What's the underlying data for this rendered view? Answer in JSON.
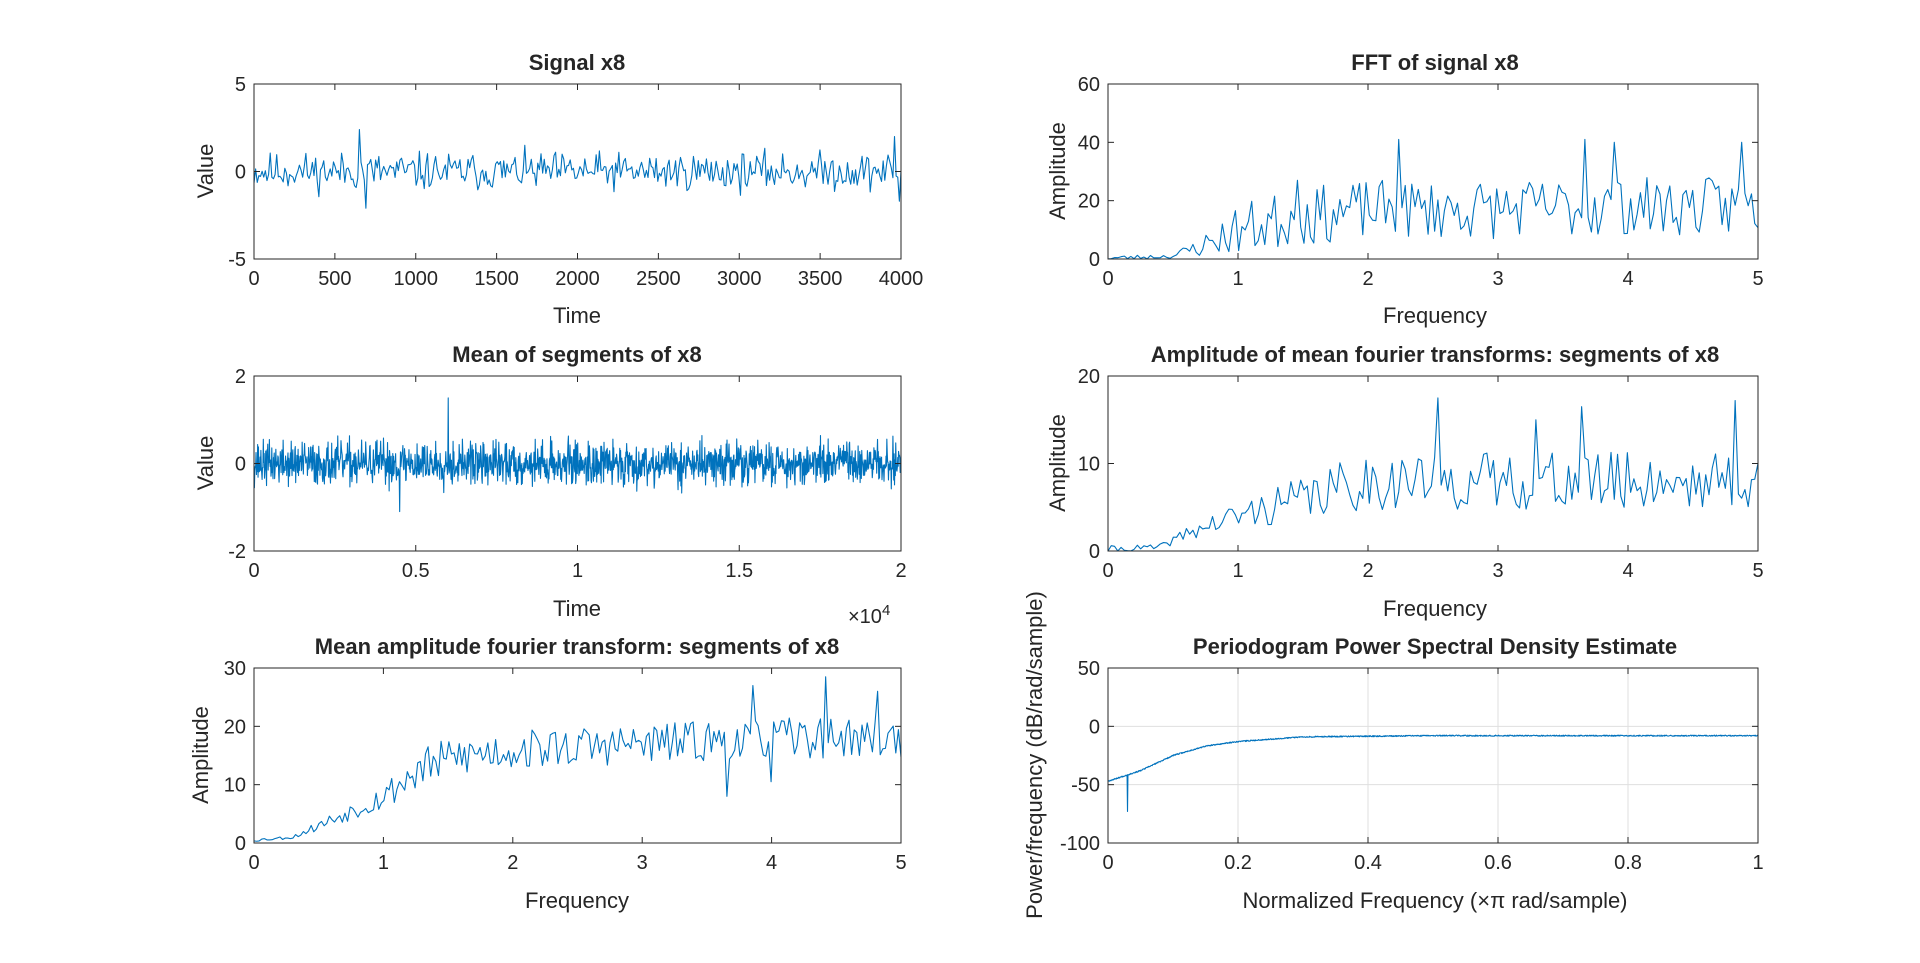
{
  "figure": {
    "background": "#ffffff",
    "line_color": "#0072bd",
    "axis_color": "#262626",
    "grid_color": "#dfdfdf"
  },
  "chart_data": [
    {
      "id": "signal",
      "type": "line",
      "title": "Signal x8",
      "xlabel": "Time",
      "ylabel": "Value",
      "xlim": [
        0,
        4000
      ],
      "ylim": [
        -5,
        5
      ],
      "xticks": [
        0,
        500,
        1000,
        1500,
        2000,
        2500,
        3000,
        3500,
        4000
      ],
      "xtick_labels": [
        "0",
        "500",
        "1000",
        "1500",
        "2000",
        "2500",
        "3000",
        "3500",
        "4000"
      ],
      "yticks": [
        -5,
        0,
        5
      ],
      "ytick_labels": [
        "-5",
        "0",
        "5"
      ],
      "grid": false,
      "series": [
        {
          "name": "",
          "n_points": 400,
          "x_range": [
            0,
            4000
          ],
          "amplitude_profile": [
            [
              0,
              0.75
            ],
            [
              4000,
              0.75
            ]
          ],
          "peak_points": [
            [
              650,
              2.4
            ],
            [
              690,
              -2.1
            ],
            [
              3960,
              2.0
            ],
            [
              3990,
              -1.7
            ]
          ]
        }
      ]
    },
    {
      "id": "fft",
      "type": "line",
      "title": "FFT of signal x8",
      "xlabel": "Frequency",
      "ylabel": "Amplitude",
      "xlim": [
        0,
        5
      ],
      "ylim": [
        0,
        60
      ],
      "xticks": [
        0,
        1,
        2,
        3,
        4,
        5
      ],
      "xtick_labels": [
        "0",
        "1",
        "2",
        "3",
        "4",
        "5"
      ],
      "yticks": [
        0,
        20,
        40,
        60
      ],
      "ytick_labels": [
        "0",
        "20",
        "40",
        "60"
      ],
      "grid": false,
      "series": [
        {
          "name": "",
          "n_points": 200,
          "x_range": [
            0,
            5
          ],
          "baseline_profile": [
            [
              0,
              0.3
            ],
            [
              0.5,
              1
            ],
            [
              0.75,
              5
            ],
            [
              1,
              10
            ],
            [
              1.4,
              14
            ],
            [
              2,
              17
            ],
            [
              3,
              17
            ],
            [
              4,
              18
            ],
            [
              5,
              18
            ]
          ],
          "noise": 10,
          "peak_points": [
            [
              2.23,
              41
            ],
            [
              3.9,
              40
            ],
            [
              3.67,
              41
            ],
            [
              4.87,
              40
            ],
            [
              1.45,
              27
            ]
          ]
        }
      ]
    },
    {
      "id": "mean-segments",
      "type": "line",
      "title": "Mean of segments of x8",
      "xlabel": "Time",
      "ylabel": "Value",
      "x_exponent_label": "×10",
      "x_exponent": "4",
      "xlim": [
        0,
        2
      ],
      "ylim": [
        -2,
        2
      ],
      "xticks": [
        0,
        0.5,
        1,
        1.5,
        2
      ],
      "xtick_labels": [
        "0",
        "0.5",
        "1",
        "1.5",
        "2"
      ],
      "yticks": [
        -2,
        0,
        2
      ],
      "ytick_labels": [
        "-2",
        "0",
        "2"
      ],
      "grid": false,
      "series": [
        {
          "name": "",
          "n_points": 1600,
          "x_range": [
            0,
            2
          ],
          "amplitude_profile": [
            [
              0,
              0.35
            ],
            [
              2,
              0.35
            ]
          ],
          "peak_points": [
            [
              0.6,
              1.5
            ],
            [
              0.45,
              -1.1
            ]
          ]
        }
      ]
    },
    {
      "id": "mean-fft",
      "type": "line",
      "title": "Amplitude of mean fourier transforms: segments of x8",
      "xlabel": "Frequency",
      "ylabel": "Amplitude",
      "xlim": [
        0,
        5
      ],
      "ylim": [
        0,
        20
      ],
      "xticks": [
        0,
        1,
        2,
        3,
        4,
        5
      ],
      "xtick_labels": [
        "0",
        "1",
        "2",
        "3",
        "4",
        "5"
      ],
      "yticks": [
        0,
        10,
        20
      ],
      "ytick_labels": [
        "0",
        "10",
        "20"
      ],
      "grid": false,
      "series": [
        {
          "name": "",
          "n_points": 200,
          "x_range": [
            0,
            5
          ],
          "baseline_profile": [
            [
              0,
              0.2
            ],
            [
              0.4,
              0.4
            ],
            [
              0.6,
              2
            ],
            [
              1,
              4
            ],
            [
              1.5,
              6
            ],
            [
              2,
              8
            ],
            [
              3,
              8
            ],
            [
              4,
              8
            ],
            [
              5,
              8
            ]
          ],
          "noise": 5,
          "peak_points": [
            [
              2.55,
              17.5
            ],
            [
              4.82,
              17.2
            ],
            [
              3.65,
              16.5
            ],
            [
              3.3,
              15
            ]
          ]
        }
      ]
    },
    {
      "id": "mean-amplitude-fft",
      "type": "line",
      "title": "Mean amplitude fourier transform: segments of x8",
      "xlabel": "Frequency",
      "ylabel": "Amplitude",
      "xlim": [
        0,
        5
      ],
      "ylim": [
        0,
        30
      ],
      "xticks": [
        0,
        1,
        2,
        3,
        4,
        5
      ],
      "xtick_labels": [
        "0",
        "1",
        "2",
        "3",
        "4",
        "5"
      ],
      "yticks": [
        0,
        10,
        20,
        30
      ],
      "ytick_labels": [
        "0",
        "10",
        "20",
        "30"
      ],
      "grid": false,
      "series": [
        {
          "name": "",
          "n_points": 250,
          "x_range": [
            0,
            5
          ],
          "baseline_profile": [
            [
              0,
              0.5
            ],
            [
              0.3,
              1
            ],
            [
              0.6,
              4
            ],
            [
              1,
              8
            ],
            [
              1.3,
              13
            ],
            [
              1.6,
              15
            ],
            [
              2,
              16
            ],
            [
              3,
              17
            ],
            [
              4,
              18
            ],
            [
              5,
              18
            ]
          ],
          "noise": 3.5,
          "peak_points": [
            [
              4.42,
              28.5
            ],
            [
              3.85,
              27
            ],
            [
              4.82,
              26
            ],
            [
              4.0,
              10.5
            ],
            [
              3.65,
              8
            ]
          ]
        }
      ]
    },
    {
      "id": "periodogram",
      "type": "line",
      "title": "Periodogram Power Spectral Density Estimate",
      "xlabel": "Normalized Frequency  (×π rad/sample)",
      "ylabel": "Power/frequency (dB/rad/sample)",
      "xlim": [
        0,
        1
      ],
      "ylim": [
        -100,
        50
      ],
      "xticks": [
        0,
        0.2,
        0.4,
        0.6,
        0.8,
        1
      ],
      "xtick_labels": [
        "0",
        "0.2",
        "0.4",
        "0.6",
        "0.8",
        "1"
      ],
      "yticks": [
        -100,
        -50,
        0,
        50
      ],
      "ytick_labels": [
        "-100",
        "-50",
        "0",
        "50"
      ],
      "grid": true,
      "series": [
        {
          "name": "",
          "n_points": 1500,
          "x_range": [
            0,
            1
          ],
          "baseline_profile": [
            [
              0,
              -47
            ],
            [
              0.05,
              -38
            ],
            [
              0.1,
              -25
            ],
            [
              0.15,
              -17
            ],
            [
              0.2,
              -13
            ],
            [
              0.3,
              -9
            ],
            [
              0.5,
              -8
            ],
            [
              1,
              -8
            ]
          ],
          "noise": 6,
          "peak_points": [
            [
              0.03,
              -73
            ]
          ]
        }
      ]
    }
  ]
}
